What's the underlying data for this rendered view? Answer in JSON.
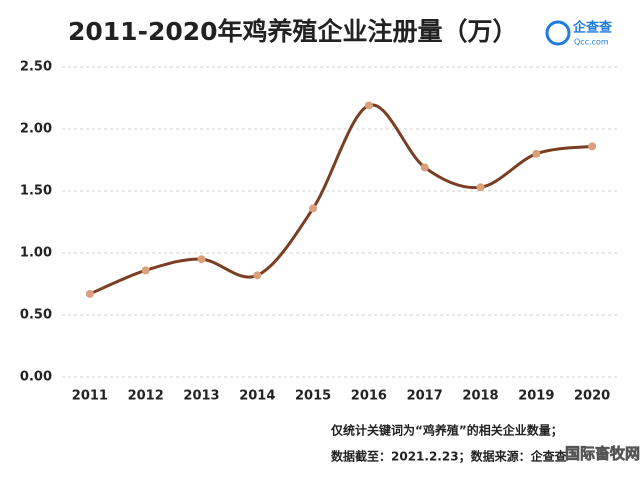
{
  "chart_data": {
    "type": "line",
    "title": "2011-2020年鸡养殖企业注册量（万）",
    "logo": {
      "name": "企查查",
      "url": "Qcc.com"
    },
    "categories": [
      "2011",
      "2012",
      "2013",
      "2014",
      "2015",
      "2016",
      "2017",
      "2018",
      "2019",
      "2020"
    ],
    "series": [
      {
        "name": "注册量",
        "color": "#7a3e22",
        "marker_color": "#d9a07c",
        "values": [
          0.67,
          0.86,
          0.95,
          0.82,
          1.36,
          2.19,
          1.69,
          1.53,
          1.8,
          1.86
        ]
      }
    ],
    "ylim": [
      0,
      2.5
    ],
    "yticks": [
      {
        "value": 0,
        "label": "0.00"
      },
      {
        "value": 0.5,
        "label": "0.50"
      },
      {
        "value": 1,
        "label": "1.00"
      },
      {
        "value": 1.5,
        "label": "1.50"
      },
      {
        "value": 2,
        "label": "2.00"
      },
      {
        "value": 2.5,
        "label": "2.50"
      }
    ],
    "grid": true,
    "notes": [
      "仅统计关键词为“鸡养殖”的相关企业数量；",
      "数据截至：2021.2.23；数据来源：企查查"
    ],
    "watermark": "国际畜牧网"
  }
}
